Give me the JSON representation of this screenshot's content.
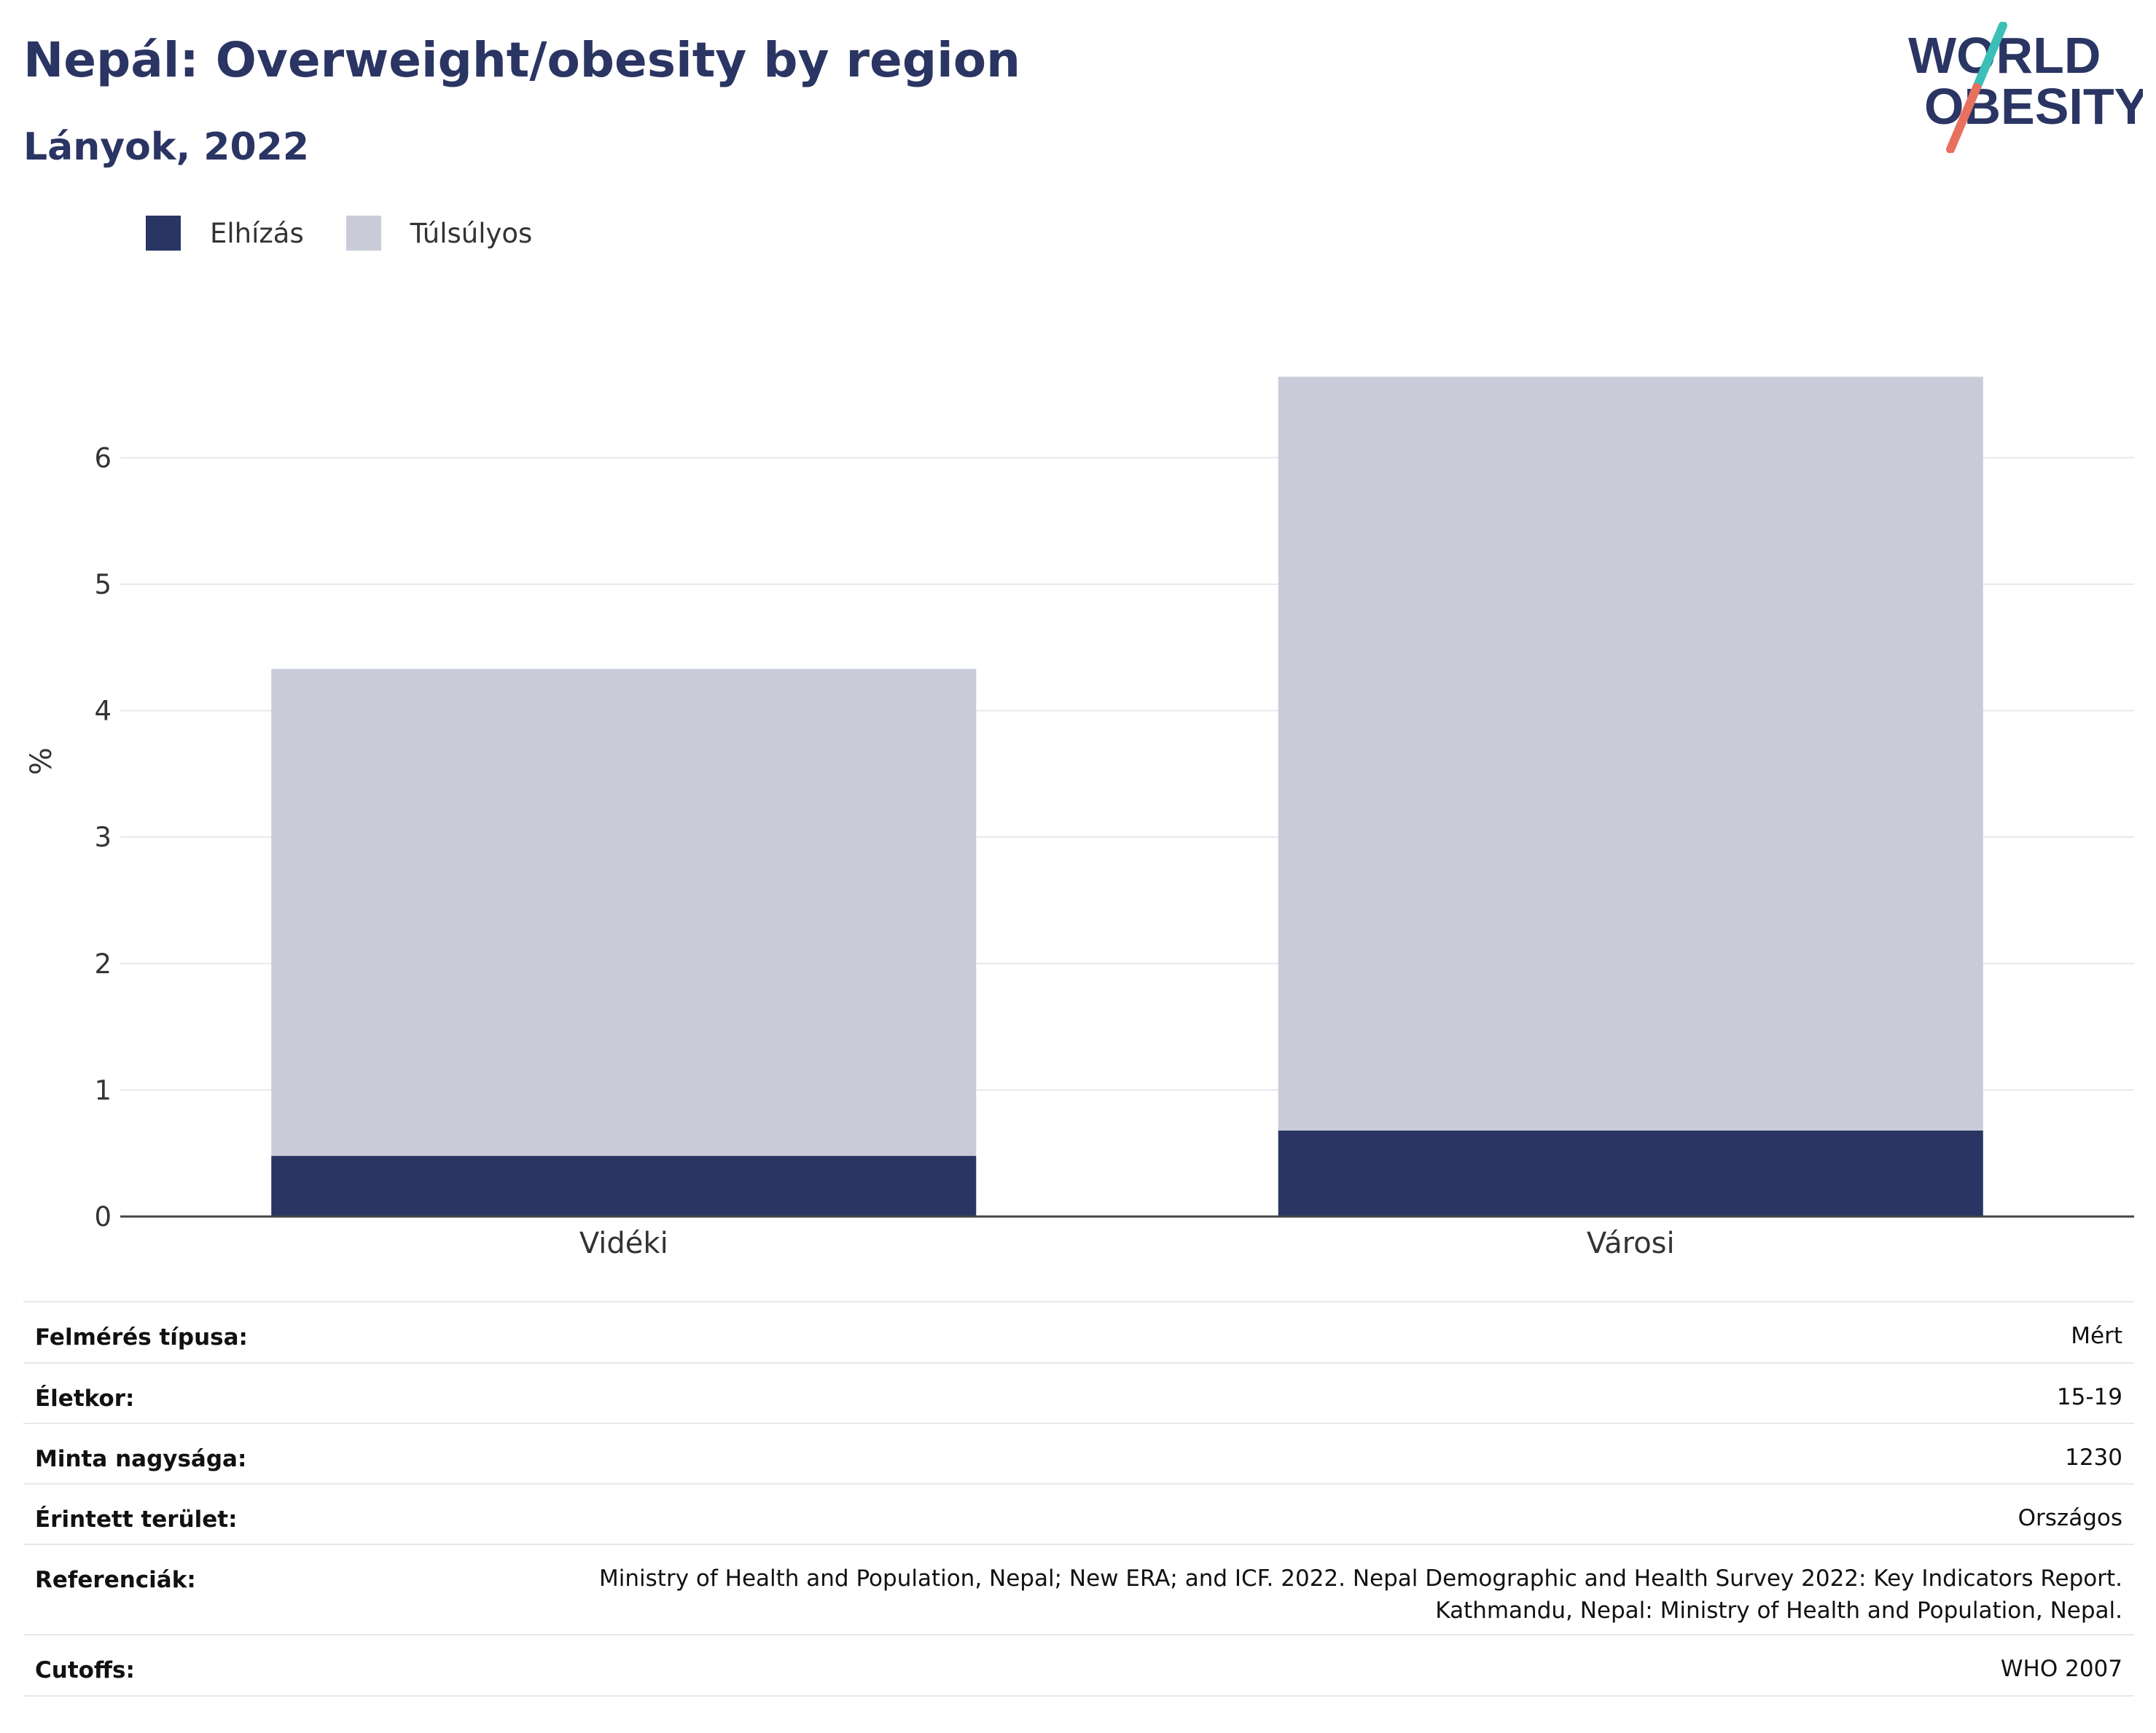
{
  "header": {
    "title": "Nepál: Overweight/obesity by region",
    "subtitle": "Lányok, 2022"
  },
  "logo": {
    "line1": "WORLD",
    "line2": "OBESITY",
    "colors": {
      "text": "#2a3563",
      "slash_top": "#3bbfb7",
      "slash_bottom": "#e8705f"
    }
  },
  "legend": [
    {
      "label": "Elhízás",
      "color": "#2a3563"
    },
    {
      "label": "Túlsúlyos",
      "color": "#c9ccd8"
    }
  ],
  "chart_data": {
    "type": "bar",
    "stacked": true,
    "categories": [
      "Vidéki",
      "Városi"
    ],
    "series": [
      {
        "name": "Elhízás",
        "color": "#2a3563",
        "values": [
          0.48,
          0.68
        ]
      },
      {
        "name": "Túlsúlyos",
        "color": "#c9ccd8",
        "values": [
          3.85,
          5.96
        ]
      }
    ],
    "ylabel": "%",
    "xlabel": "",
    "ylim": [
      0,
      7.2
    ],
    "yticks": [
      0,
      1,
      2,
      3,
      4,
      5,
      6
    ],
    "grid": true,
    "legend_position": "top-left"
  },
  "meta": {
    "rows": [
      {
        "label": "Felmérés típusa:",
        "value": "Mért"
      },
      {
        "label": "Életkor:",
        "value": "15-19"
      },
      {
        "label": "Minta nagysága:",
        "value": "1230"
      },
      {
        "label": "Érintett terület:",
        "value": "Országos"
      },
      {
        "label": "Referenciák:",
        "value": "Ministry of Health and Population, Nepal; New ERA; and ICF. 2022. Nepal Demographic and Health Survey 2022: Key Indicators Report.",
        "value2": "Kathmandu, Nepal: Ministry of Health and Population, Nepal."
      },
      {
        "label": "Cutoffs:",
        "value": "WHO 2007"
      }
    ]
  }
}
